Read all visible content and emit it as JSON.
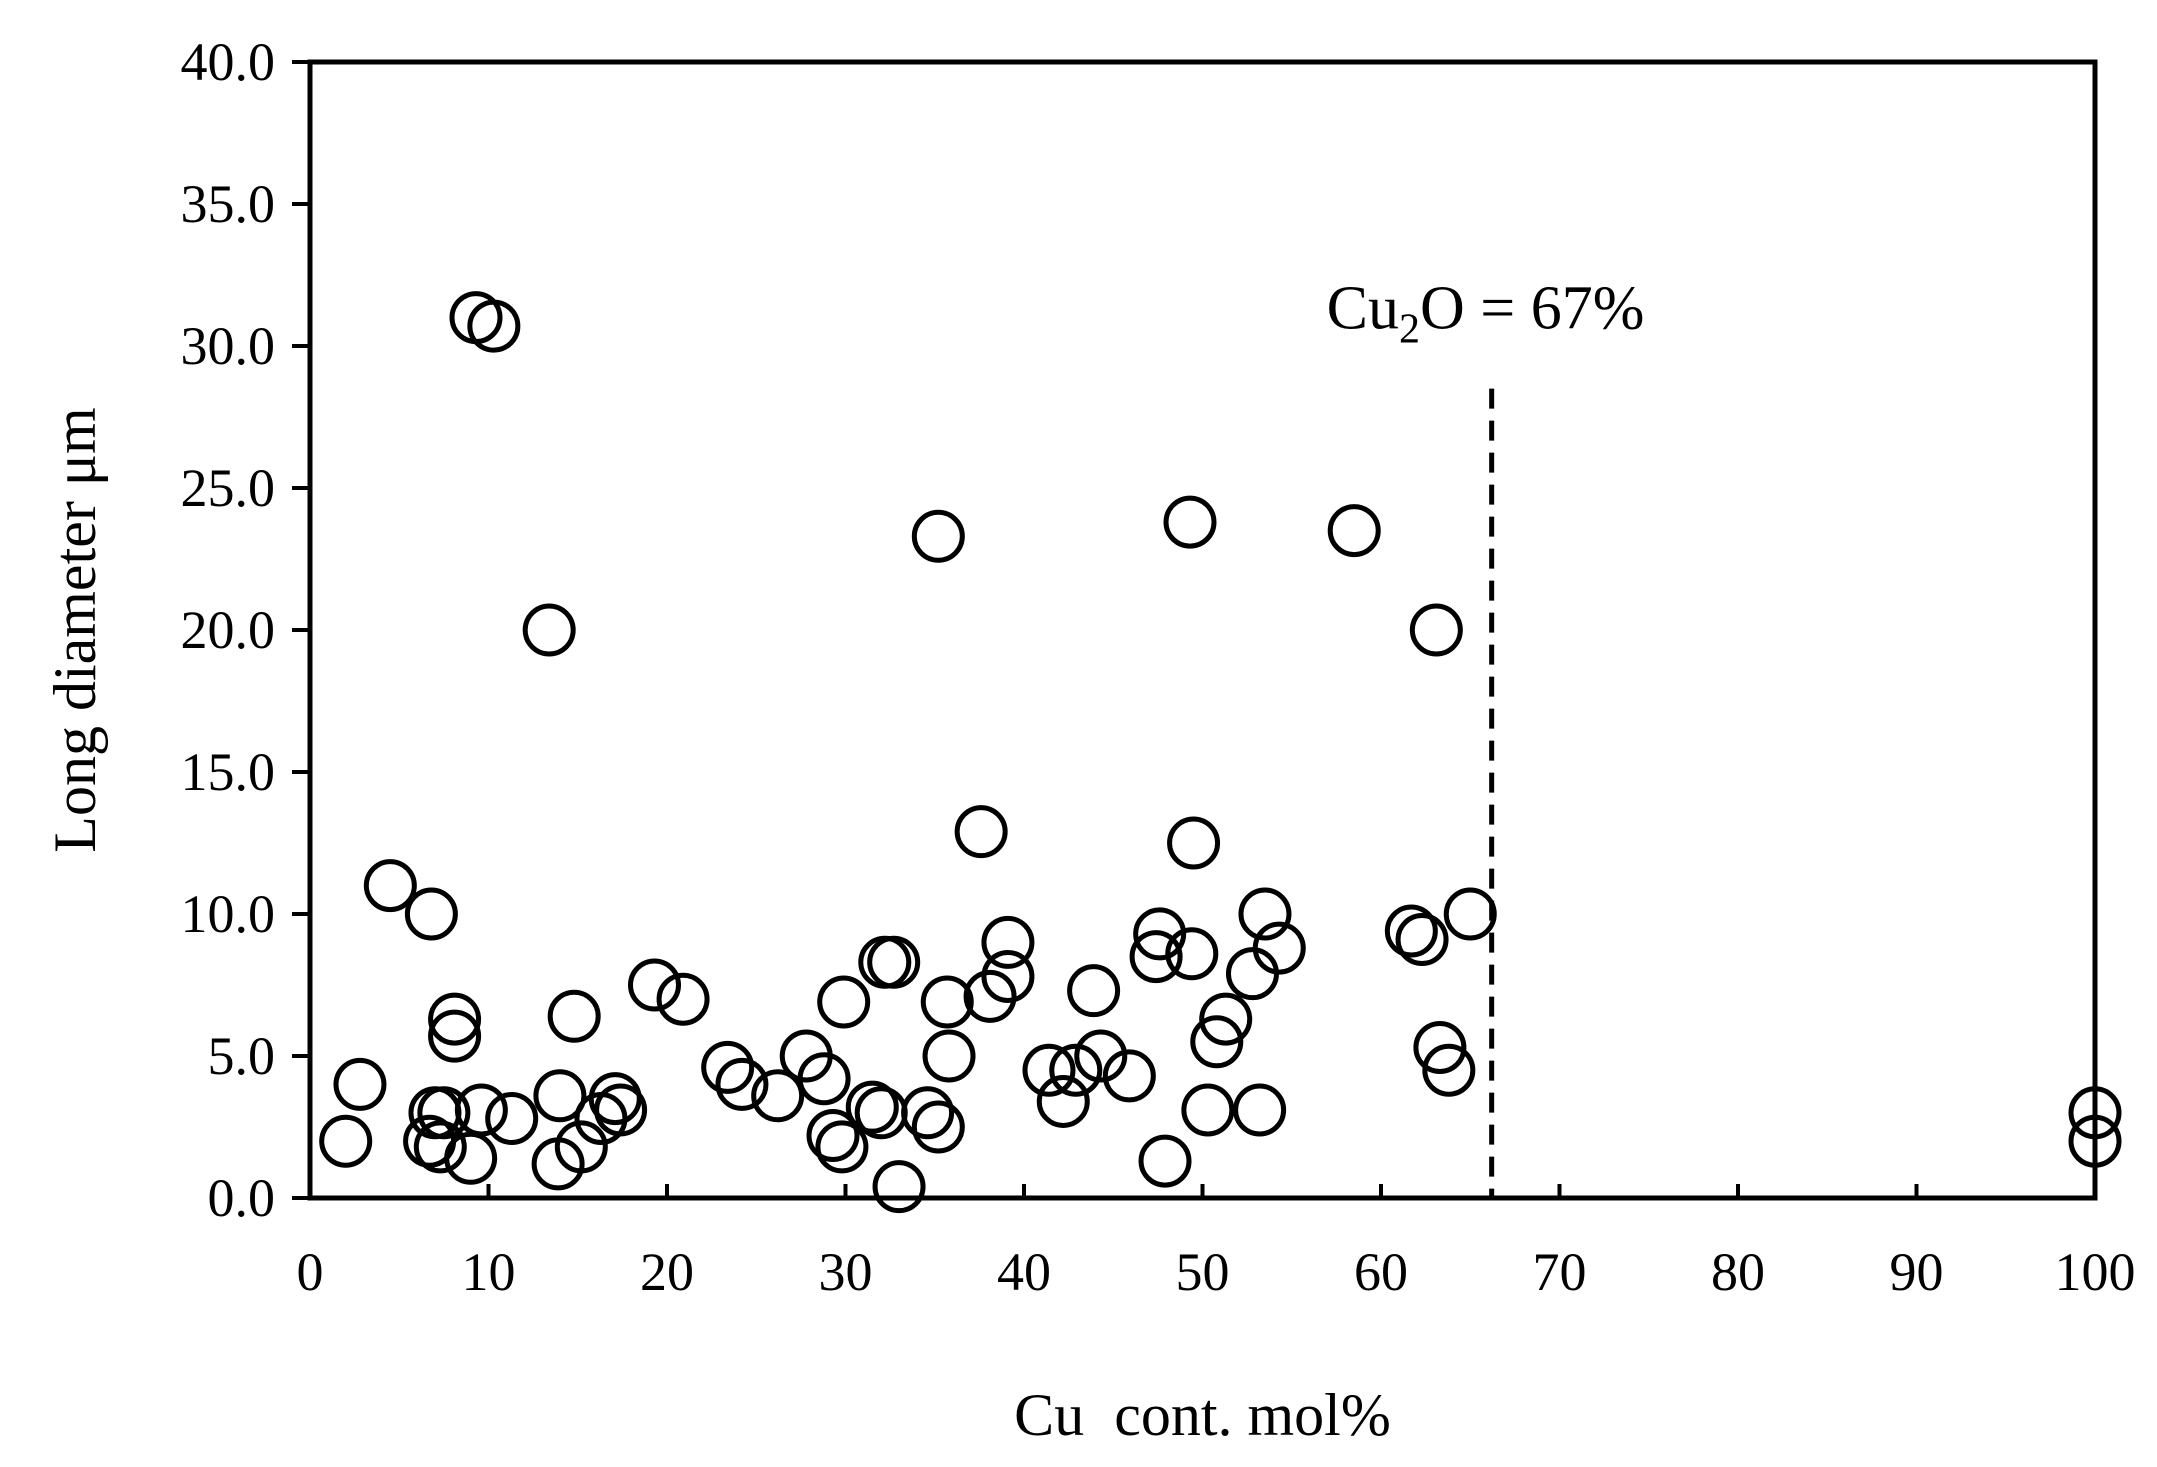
{
  "chart_data": {
    "type": "scatter",
    "title": "",
    "xlabel": "Cu  cont. mol%",
    "ylabel": "Long diameter μm",
    "xlim": [
      0,
      100
    ],
    "ylim": [
      0,
      40
    ],
    "x_ticks": [
      "0",
      "10",
      "20",
      "30",
      "40",
      "50",
      "60",
      "70",
      "80",
      "90",
      "100"
    ],
    "y_ticks": [
      "0.0",
      "5.0",
      "10.0",
      "15.0",
      "20.0",
      "25.0",
      "30.0",
      "35.0",
      "40.0"
    ],
    "grid": false,
    "legend": "none",
    "marker": "open-circle",
    "colors": {
      "marker_edge": "#000000",
      "marker_fill": "#ffffff",
      "axis": "#000000"
    },
    "annotation": {
      "text_main": "Cu",
      "text_sub": "2",
      "text_rest": "O = 67%",
      "x": 66.2,
      "y_top": 28.5,
      "style": "dashed-vertical-line"
    },
    "series": [
      {
        "points": [
          [
            2.0,
            2.0
          ],
          [
            2.8,
            4.0
          ],
          [
            4.5,
            11.0
          ],
          [
            6.7,
            2.0
          ],
          [
            6.8,
            10.0
          ],
          [
            7.0,
            3.0
          ],
          [
            7.3,
            1.8
          ],
          [
            7.5,
            3.0
          ],
          [
            8.1,
            6.3
          ],
          [
            8.1,
            5.7
          ],
          [
            9.0,
            1.4
          ],
          [
            9.3,
            31.0
          ],
          [
            9.6,
            3.1
          ],
          [
            10.3,
            30.7
          ],
          [
            11.3,
            2.8
          ],
          [
            13.4,
            20.0
          ],
          [
            13.9,
            1.2
          ],
          [
            14.0,
            3.6
          ],
          [
            14.8,
            6.4
          ],
          [
            15.2,
            1.8
          ],
          [
            16.3,
            2.8
          ],
          [
            17.1,
            3.5
          ],
          [
            17.4,
            3.1
          ],
          [
            19.3,
            7.5
          ],
          [
            20.9,
            7.0
          ],
          [
            23.4,
            4.6
          ],
          [
            24.2,
            4.0
          ],
          [
            26.2,
            3.6
          ],
          [
            27.8,
            5.0
          ],
          [
            28.8,
            4.2
          ],
          [
            29.3,
            2.2
          ],
          [
            29.8,
            1.8
          ],
          [
            29.9,
            6.9
          ],
          [
            31.5,
            3.2
          ],
          [
            32.0,
            3.0
          ],
          [
            32.2,
            8.3
          ],
          [
            32.7,
            8.3
          ],
          [
            33.0,
            0.4
          ],
          [
            34.6,
            3.0
          ],
          [
            35.2,
            2.5
          ],
          [
            35.2,
            23.3
          ],
          [
            35.7,
            6.9
          ],
          [
            35.8,
            5.0
          ],
          [
            37.6,
            12.9
          ],
          [
            38.1,
            7.1
          ],
          [
            39.1,
            9.0
          ],
          [
            39.1,
            7.8
          ],
          [
            41.4,
            4.5
          ],
          [
            42.2,
            3.4
          ],
          [
            42.9,
            4.5
          ],
          [
            43.9,
            7.3
          ],
          [
            44.3,
            5.0
          ],
          [
            45.9,
            4.3
          ],
          [
            47.4,
            8.5
          ],
          [
            47.6,
            9.3
          ],
          [
            47.9,
            1.3
          ],
          [
            49.3,
            23.8
          ],
          [
            49.4,
            8.6
          ],
          [
            49.5,
            12.5
          ],
          [
            50.3,
            3.1
          ],
          [
            50.8,
            5.5
          ],
          [
            51.3,
            6.3
          ],
          [
            52.8,
            7.9
          ],
          [
            53.2,
            3.1
          ],
          [
            53.5,
            10.0
          ],
          [
            54.3,
            8.8
          ],
          [
            58.5,
            23.5
          ],
          [
            61.7,
            9.4
          ],
          [
            62.3,
            9.1
          ],
          [
            63.1,
            20.0
          ],
          [
            63.3,
            5.3
          ],
          [
            63.8,
            4.5
          ],
          [
            65.0,
            10.0
          ],
          [
            100.0,
            2.0
          ],
          [
            100.0,
            3.0
          ]
        ]
      }
    ]
  }
}
